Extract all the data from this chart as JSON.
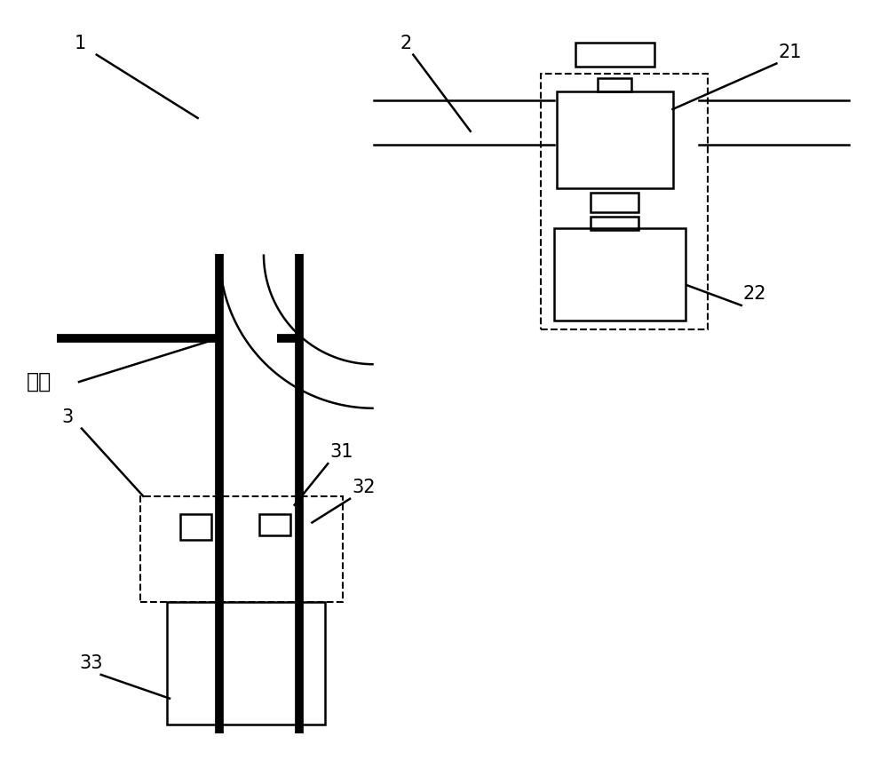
{
  "bg_color": "#ffffff",
  "line_color": "#000000",
  "thick_lw": 7,
  "thin_lw": 1.8,
  "dashed_lw": 1.5,
  "label_fontsize": 15,
  "chinese_fontsize": 17,
  "fig_width": 10.0,
  "fig_height": 8.74
}
